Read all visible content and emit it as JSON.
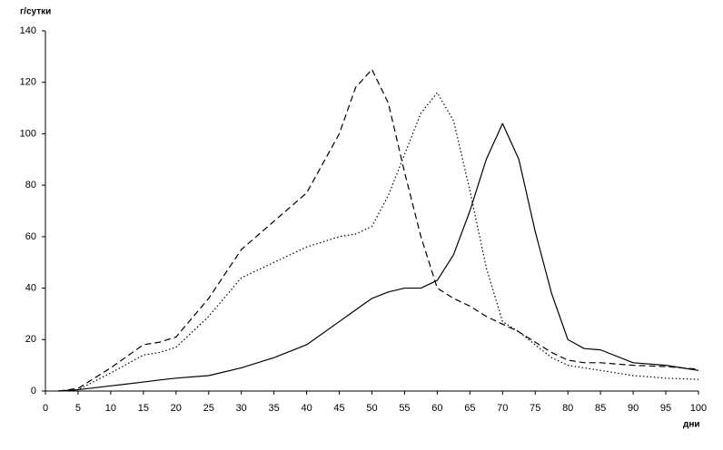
{
  "chart_data": {
    "type": "line",
    "y_label": "г/сутки",
    "x_label": "дни",
    "x": [
      2,
      5,
      10,
      15,
      17.5,
      20,
      25,
      30,
      35,
      40,
      45,
      47.5,
      50,
      52.5,
      55,
      57.5,
      60,
      62.5,
      65,
      67.5,
      70,
      72.5,
      75,
      77.5,
      80,
      82.5,
      85,
      90,
      95,
      100
    ],
    "series": [
      {
        "color": "#000000",
        "dash": "solid",
        "values": [
          0,
          0.5,
          2,
          3.5,
          4.3,
          5,
          6,
          9,
          13,
          18,
          27,
          31.5,
          36,
          38.5,
          40,
          40,
          43,
          53,
          70,
          90,
          104,
          90,
          62,
          38,
          20,
          16.5,
          16,
          11,
          10,
          8
        ]
      },
      {
        "color": "#000000",
        "dash": "dashed",
        "values": [
          0,
          1,
          9,
          18,
          19,
          21,
          36,
          55,
          66,
          77,
          100,
          118,
          125,
          112,
          85,
          60,
          40,
          36,
          33,
          29,
          26,
          23,
          19,
          15,
          12,
          11,
          11,
          10,
          9.5,
          8.5
        ]
      },
      {
        "color": "#000000",
        "dash": "dotted",
        "values": [
          0,
          0.5,
          7,
          14,
          15,
          17,
          29,
          44,
          50,
          56,
          60,
          61,
          64,
          76,
          92,
          108,
          116,
          105,
          78,
          48,
          27,
          23,
          18,
          13,
          10,
          9,
          8,
          6,
          5,
          4.5
        ]
      }
    ],
    "xlim": [
      0,
      100
    ],
    "xticks": [
      0,
      5,
      10,
      15,
      20,
      25,
      30,
      35,
      40,
      45,
      50,
      55,
      60,
      65,
      70,
      75,
      80,
      85,
      90,
      95,
      100
    ],
    "ylim": [
      0,
      140
    ],
    "yticks": [
      0,
      20,
      40,
      60,
      80,
      100,
      120,
      140
    ],
    "grid": false
  }
}
